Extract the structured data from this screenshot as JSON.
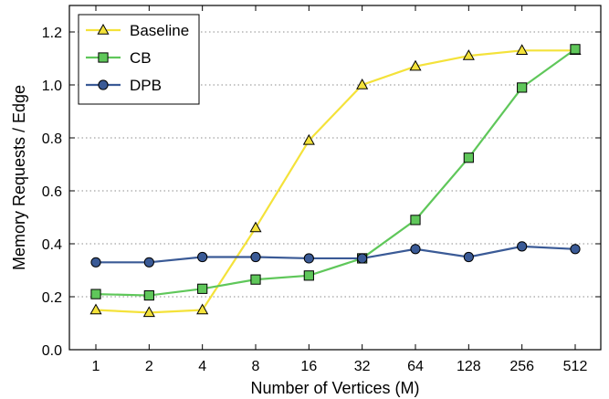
{
  "chart_data": {
    "type": "line",
    "title": "",
    "xlabel": "Number of Vertices (M)",
    "ylabel": "Memory Requests / Edge",
    "categories": [
      "1",
      "2",
      "4",
      "8",
      "16",
      "32",
      "64",
      "128",
      "256",
      "512"
    ],
    "ylim": [
      0,
      1.3
    ],
    "yticks": [
      "0.0",
      "0.2",
      "0.4",
      "0.6",
      "0.8",
      "1.0",
      "1.2"
    ],
    "ytick_values": [
      0,
      0.2,
      0.4,
      0.6,
      0.8,
      1.0,
      1.2
    ],
    "grid": "horizontal-dotted",
    "legend_position": "top-left",
    "series": [
      {
        "name": "Baseline",
        "color": "#f4e23a",
        "marker": "triangle",
        "values": [
          0.15,
          0.14,
          0.15,
          0.46,
          0.79,
          1.0,
          1.07,
          1.11,
          1.13,
          1.13
        ]
      },
      {
        "name": "CB",
        "color": "#5fc75a",
        "marker": "square",
        "values": [
          0.21,
          0.205,
          0.23,
          0.265,
          0.28,
          0.345,
          0.49,
          0.725,
          0.99,
          1.135
        ]
      },
      {
        "name": "DPB",
        "color": "#3a5a96",
        "marker": "circle",
        "values": [
          0.33,
          0.33,
          0.35,
          0.35,
          0.345,
          0.345,
          0.38,
          0.35,
          0.39,
          0.38
        ]
      }
    ]
  }
}
